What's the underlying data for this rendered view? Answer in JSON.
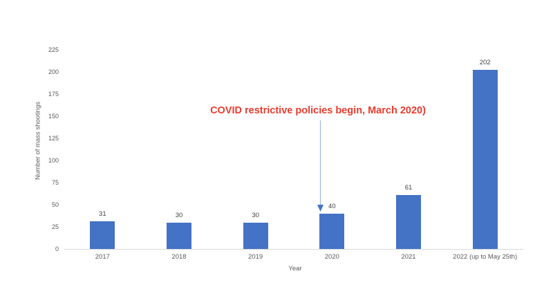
{
  "chart_data": {
    "type": "bar",
    "title": "",
    "xlabel": "Year",
    "ylabel": "Number of mass shootings",
    "categories": [
      "2017",
      "2018",
      "2019",
      "2020",
      "2021",
      "2022 (up to May 25th)"
    ],
    "values": [
      31,
      30,
      30,
      40,
      61,
      202
    ],
    "data_labels": [
      "31",
      "30",
      "30",
      "40",
      "61",
      "202"
    ],
    "ylim": [
      0,
      225
    ],
    "yticks": [
      0,
      25,
      50,
      75,
      100,
      125,
      150,
      175,
      200,
      225
    ],
    "grid": false,
    "legend": false,
    "bar_color": "#4472c4",
    "axis_line_color": "#d9d9d9",
    "tick_label_color": "#595959",
    "value_label_color": "#404040",
    "annotation": {
      "text": "COVID restrictive policies begin, March 2020)",
      "color": "#ea3b2c",
      "arrow_line_color": "#9fb7e8",
      "arrowhead_color": "#4472c4",
      "target_category": "2020"
    }
  }
}
